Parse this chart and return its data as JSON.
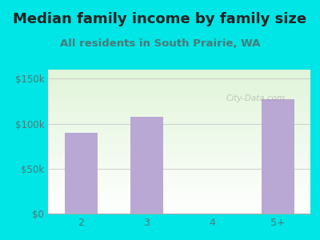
{
  "title": "Median family income by family size",
  "subtitle": "All residents in South Prairie, WA",
  "categories": [
    "2",
    "3",
    "4",
    "5+"
  ],
  "values": [
    90000,
    108000,
    0,
    127000
  ],
  "bar_color": "#b9a8d4",
  "background_color": "#00e5e5",
  "yticks": [
    0,
    50000,
    100000,
    150000
  ],
  "ytick_labels": [
    "$0",
    "$50k",
    "$100k",
    "$150k"
  ],
  "ylim": [
    0,
    160000
  ],
  "title_fontsize": 13,
  "subtitle_fontsize": 9.5,
  "title_color": "#222222",
  "subtitle_color": "#4a7a7a",
  "tick_color": "#4a7a7a",
  "watermark": "City-Data.com"
}
